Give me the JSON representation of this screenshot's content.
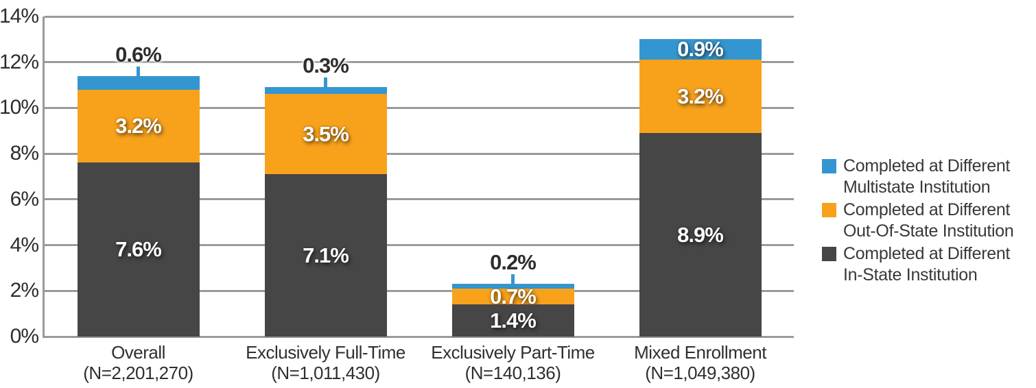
{
  "page": {
    "background": "#ffffff"
  },
  "chart_data": {
    "type": "bar",
    "stacked": true,
    "title": "",
    "xlabel": "",
    "ylabel": "",
    "ylim": [
      0,
      14
    ],
    "ytick_step": 2,
    "ytick_labels": [
      "0%",
      "2%",
      "4%",
      "6%",
      "8%",
      "10%",
      "12%",
      "14%"
    ],
    "grid": true,
    "axis_color": "#9a9a9a",
    "legend_position": "right",
    "categories": [
      {
        "label": "Overall",
        "n_label": "(N=2,201,270)"
      },
      {
        "label": "Exclusively Full-Time",
        "n_label": "(N=1,011,430)"
      },
      {
        "label": "Exclusively Part-Time",
        "n_label": "(N=140,136)"
      },
      {
        "label": "Mixed Enrollment",
        "n_label": "(N=1,049,380)"
      }
    ],
    "series": [
      {
        "name": "Completed at Different In-State Institution",
        "color": "#464646",
        "values": [
          7.6,
          7.1,
          1.4,
          8.9
        ],
        "labels": [
          "7.6%",
          "7.1%",
          "1.4%",
          "8.9%"
        ],
        "label_outside": [
          false,
          false,
          false,
          false
        ]
      },
      {
        "name": "Completed at Different Out-Of-State Institution",
        "color": "#F8A21C",
        "values": [
          3.2,
          3.5,
          0.7,
          3.2
        ],
        "labels": [
          "3.2%",
          "3.5%",
          "0.7%",
          "3.2%"
        ],
        "label_outside": [
          false,
          false,
          false,
          false
        ]
      },
      {
        "name": "Completed at Different Multistate Institution",
        "color": "#3496D0",
        "values": [
          0.6,
          0.3,
          0.2,
          0.9
        ],
        "labels": [
          "0.6%",
          "0.3%",
          "0.2%",
          "0.9%"
        ],
        "label_outside": [
          true,
          true,
          true,
          false
        ]
      }
    ],
    "legend": [
      {
        "lines": [
          "Completed at Different",
          "Multistate Institution"
        ],
        "color": "#3496D0"
      },
      {
        "lines": [
          "Completed at Different",
          "Out-Of-State Institution"
        ],
        "color": "#F8A21C"
      },
      {
        "lines": [
          "Completed at Different",
          "In-State Institution"
        ],
        "color": "#464646"
      }
    ]
  }
}
